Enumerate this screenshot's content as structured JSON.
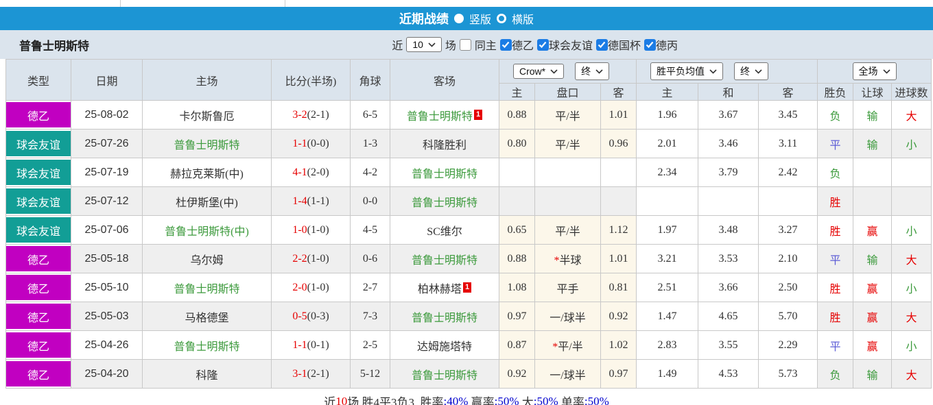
{
  "title_bar": {
    "title": "近期战绩",
    "layout_options": [
      {
        "label": "竖版",
        "selected": true
      },
      {
        "label": "横版",
        "selected": false
      }
    ]
  },
  "filter_bar": {
    "team_name": "普鲁士明斯特",
    "recent_label": "近",
    "match_count": "10",
    "games_label": "场",
    "same_home": {
      "label": "同主",
      "checked": false
    },
    "league_filters": [
      {
        "label": "德乙",
        "checked": true
      },
      {
        "label": "球会友谊",
        "checked": true
      },
      {
        "label": "德国杯",
        "checked": true
      },
      {
        "label": "德丙",
        "checked": true
      }
    ]
  },
  "table": {
    "selects": {
      "odds_company": "Crow*",
      "odds_final_1": "终",
      "avg_header": "胜平负均值",
      "avg_final": "终",
      "scope": "全场"
    },
    "headers": {
      "type": "类型",
      "date": "日期",
      "home": "主场",
      "score": "比分(半场)",
      "corner": "角球",
      "away": "客场",
      "odds_home": "主",
      "odds_line": "盘口",
      "odds_away": "客",
      "avg_home": "主",
      "avg_draw": "和",
      "avg_away": "客",
      "result": "胜负",
      "handicap": "让球",
      "goals": "进球数"
    },
    "rows": [
      {
        "league": "德乙",
        "date": "25-08-02",
        "home": "卡尔斯鲁厄",
        "home_focus": false,
        "home_badge": "",
        "score": "3-2",
        "half": "(2-1)",
        "corner": "6-5",
        "away": "普鲁士明斯特",
        "away_focus": true,
        "away_badge": "1",
        "odds_home": "0.88",
        "line": "平/半",
        "line_star": false,
        "odds_away": "1.01",
        "avg_home": "1.96",
        "avg_draw": "3.67",
        "avg_away": "3.45",
        "result": "负",
        "handicap": "输",
        "goals": "大"
      },
      {
        "league": "球会友谊",
        "date": "25-07-26",
        "home": "普鲁士明斯特",
        "home_focus": true,
        "home_badge": "",
        "score": "1-1",
        "half": "(0-0)",
        "corner": "1-3",
        "away": "科隆胜利",
        "away_focus": false,
        "away_badge": "",
        "odds_home": "0.80",
        "line": "平/半",
        "line_star": false,
        "odds_away": "0.96",
        "avg_home": "2.01",
        "avg_draw": "3.46",
        "avg_away": "3.11",
        "result": "平",
        "handicap": "输",
        "goals": "小"
      },
      {
        "league": "球会友谊",
        "date": "25-07-19",
        "home": "赫拉克莱斯(中)",
        "home_focus": false,
        "home_badge": "",
        "score": "4-1",
        "half": "(2-0)",
        "corner": "4-2",
        "away": "普鲁士明斯特",
        "away_focus": true,
        "away_badge": "",
        "odds_home": "",
        "line": "",
        "line_star": false,
        "odds_away": "",
        "avg_home": "2.34",
        "avg_draw": "3.79",
        "avg_away": "2.42",
        "result": "负",
        "handicap": "",
        "goals": ""
      },
      {
        "league": "球会友谊",
        "date": "25-07-12",
        "home": "杜伊斯堡(中)",
        "home_focus": false,
        "home_badge": "",
        "score": "1-4",
        "half": "(1-1)",
        "corner": "0-0",
        "away": "普鲁士明斯特",
        "away_focus": true,
        "away_badge": "",
        "odds_home": "",
        "line": "",
        "line_star": false,
        "odds_away": "",
        "avg_home": "",
        "avg_draw": "",
        "avg_away": "",
        "result": "胜",
        "handicap": "",
        "goals": ""
      },
      {
        "league": "球会友谊",
        "date": "25-07-06",
        "home": "普鲁士明斯特(中)",
        "home_focus": true,
        "home_badge": "",
        "score": "1-0",
        "half": "(1-0)",
        "corner": "4-5",
        "away": "SC维尔",
        "away_focus": false,
        "away_badge": "",
        "odds_home": "0.65",
        "line": "平/半",
        "line_star": false,
        "odds_away": "1.12",
        "avg_home": "1.97",
        "avg_draw": "3.48",
        "avg_away": "3.27",
        "result": "胜",
        "handicap": "赢",
        "goals": "小"
      },
      {
        "league": "德乙",
        "date": "25-05-18",
        "home": "乌尔姆",
        "home_focus": false,
        "home_badge": "",
        "score": "2-2",
        "half": "(1-0)",
        "corner": "0-6",
        "away": "普鲁士明斯特",
        "away_focus": true,
        "away_badge": "",
        "odds_home": "0.88",
        "line": "半球",
        "line_star": true,
        "odds_away": "1.01",
        "avg_home": "3.21",
        "avg_draw": "3.53",
        "avg_away": "2.10",
        "result": "平",
        "handicap": "输",
        "goals": "大"
      },
      {
        "league": "德乙",
        "date": "25-05-10",
        "home": "普鲁士明斯特",
        "home_focus": true,
        "home_badge": "",
        "score": "2-0",
        "half": "(1-0)",
        "corner": "2-7",
        "away": "柏林赫塔",
        "away_focus": false,
        "away_badge": "1",
        "odds_home": "1.08",
        "line": "平手",
        "line_star": false,
        "odds_away": "0.81",
        "avg_home": "2.51",
        "avg_draw": "3.66",
        "avg_away": "2.50",
        "result": "胜",
        "handicap": "赢",
        "goals": "小"
      },
      {
        "league": "德乙",
        "date": "25-05-03",
        "home": "马格德堡",
        "home_focus": false,
        "home_badge": "",
        "score": "0-5",
        "half": "(0-3)",
        "corner": "7-3",
        "away": "普鲁士明斯特",
        "away_focus": true,
        "away_badge": "",
        "odds_home": "0.97",
        "line": "一/球半",
        "line_star": false,
        "odds_away": "0.92",
        "avg_home": "1.47",
        "avg_draw": "4.65",
        "avg_away": "5.70",
        "result": "胜",
        "handicap": "赢",
        "goals": "大"
      },
      {
        "league": "德乙",
        "date": "25-04-26",
        "home": "普鲁士明斯特",
        "home_focus": true,
        "home_badge": "",
        "score": "1-1",
        "half": "(0-1)",
        "corner": "2-5",
        "away": "达姆施塔特",
        "away_focus": false,
        "away_badge": "",
        "odds_home": "0.87",
        "line": "平/半",
        "line_star": true,
        "odds_away": "1.02",
        "avg_home": "2.83",
        "avg_draw": "3.55",
        "avg_away": "2.29",
        "result": "平",
        "handicap": "赢",
        "goals": "小"
      },
      {
        "league": "德乙",
        "date": "25-04-20",
        "home": "科隆",
        "home_focus": false,
        "home_badge": "",
        "score": "3-1",
        "half": "(2-1)",
        "corner": "5-12",
        "away": "普鲁士明斯特",
        "away_focus": true,
        "away_badge": "",
        "odds_home": "0.92",
        "line": "一/球半",
        "line_star": false,
        "odds_away": "0.97",
        "avg_home": "1.49",
        "avg_draw": "4.53",
        "avg_away": "5.73",
        "result": "负",
        "handicap": "输",
        "goals": "大"
      }
    ]
  },
  "summary": {
    "segments": [
      {
        "text": "近",
        "color": "#333333"
      },
      {
        "text": "10",
        "color": "#e60000"
      },
      {
        "text": "场,胜4平3负3, 胜率",
        "color": "#333333"
      },
      {
        "text": ":40%",
        "color": "#0000cc"
      },
      {
        "text": " 赢率",
        "color": "#333333"
      },
      {
        "text": ":50%",
        "color": "#0000cc"
      },
      {
        "text": " 大",
        "color": "#333333"
      },
      {
        "text": ":50%",
        "color": "#0000cc"
      },
      {
        "text": " 单率",
        "color": "#333333"
      },
      {
        "text": ":50%",
        "color": "#0000cc"
      }
    ]
  },
  "colors": {
    "title_bar_bg": "#1c95d4",
    "bar_bg": "#dbe4ed",
    "checkbox_accent": "#1b7ce5",
    "stripe": "#efefef",
    "odds_bg": "#fcf7ea",
    "avg_bg": "#e9f2f9",
    "focus_team": "#3c9a3c",
    "score_ft": "#e60000",
    "badge_bg": "#e60000",
    "summary_value": "#0000cc",
    "league": {
      "德乙": "#c100c1",
      "球会友谊": "#129e96"
    },
    "result": {
      "胜": "#e60000",
      "平": "#5c5cd6",
      "负": "#3c9a3c",
      "赢": "#e60000",
      "输": "#3c9a3c",
      "大": "#e60000",
      "小": "#3c9a3c"
    }
  }
}
